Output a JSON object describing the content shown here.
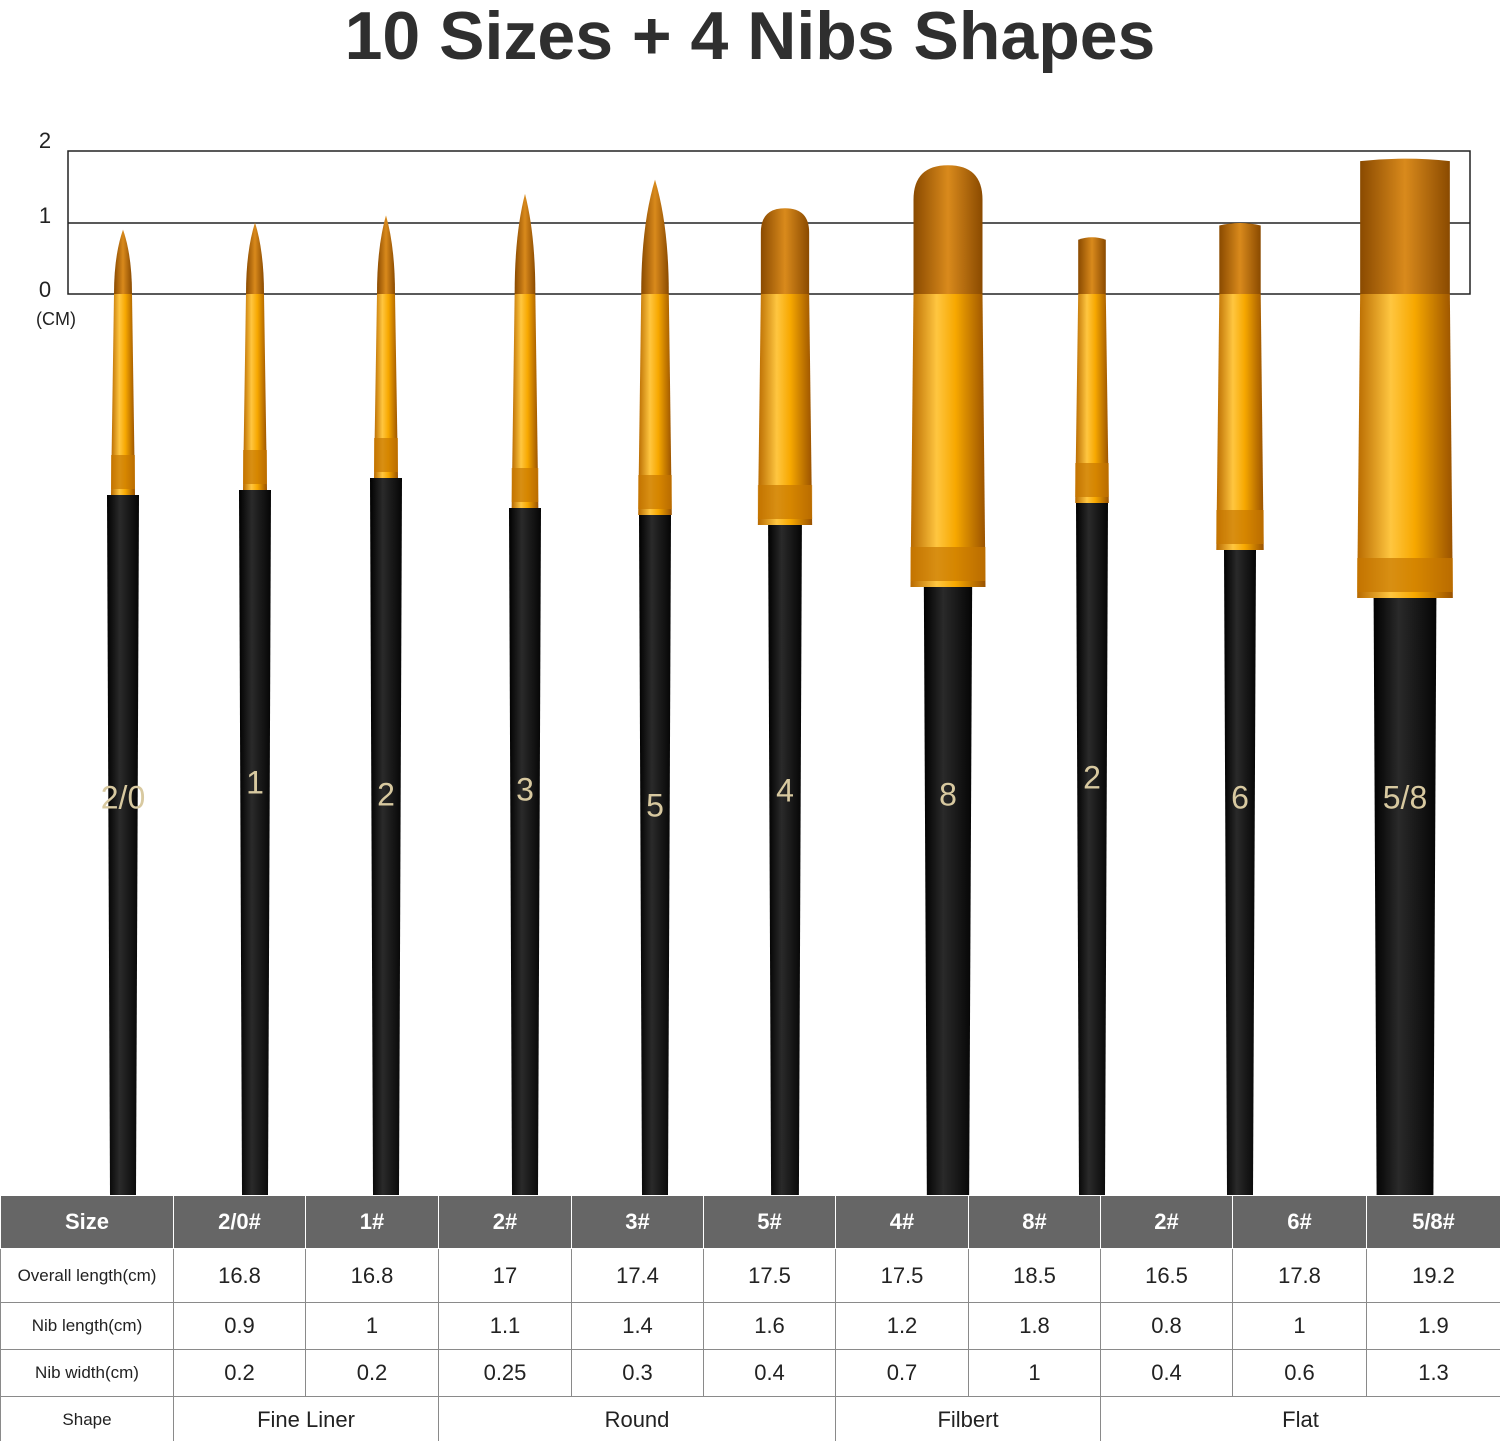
{
  "title": "10 Sizes + 4 Nibs Shapes",
  "scale": {
    "ticks": [
      "2",
      "1",
      "0"
    ],
    "unit": "(CM)"
  },
  "brushes": [
    "2/0",
    "1",
    "2",
    "3",
    "5",
    "4",
    "8",
    "2",
    "6",
    "5/8"
  ],
  "table": {
    "header": [
      "Size",
      "2/0#",
      "1#",
      "2#",
      "3#",
      "5#",
      "4#",
      "8#",
      "2#",
      "6#",
      "5/8#"
    ],
    "rows": [
      [
        "Overall length(cm)",
        16.8,
        16.8,
        17,
        17.4,
        17.5,
        17.5,
        18.5,
        16.5,
        17.8,
        19.2
      ],
      [
        "Nib length(cm)",
        0.9,
        1,
        1.1,
        1.4,
        1.6,
        1.2,
        1.8,
        0.8,
        1,
        1.9
      ],
      [
        "Nib width(cm)",
        0.2,
        0.2,
        0.25,
        0.3,
        0.4,
        0.7,
        1,
        0.4,
        0.6,
        1.3
      ]
    ],
    "shape_row": {
      "label": "Shape",
      "groups": [
        "Fine Liner",
        "Round",
        "Filbert",
        "Flat"
      ]
    }
  }
}
